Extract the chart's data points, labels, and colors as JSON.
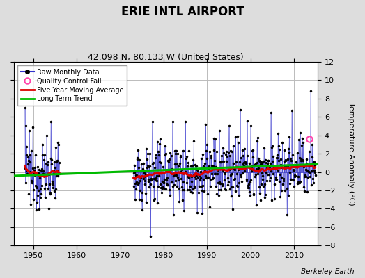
{
  "title": "ERIE INTL AIRPORT",
  "subtitle": "42.098 N, 80.133 W (United States)",
  "ylabel": "Temperature Anomaly (°C)",
  "attribution": "Berkeley Earth",
  "xlim": [
    1945.5,
    2015.5
  ],
  "ylim": [
    -8,
    12
  ],
  "yticks": [
    -8,
    -6,
    -4,
    -2,
    0,
    2,
    4,
    6,
    8,
    10,
    12
  ],
  "xticks": [
    1950,
    1960,
    1970,
    1980,
    1990,
    2000,
    2010
  ],
  "bg_color": "#dddddd",
  "plot_bg_color": "#ffffff",
  "grid_color": "#bbbbbb",
  "raw_line_color": "#3333cc",
  "raw_dot_color": "#000000",
  "ma_color": "#dd0000",
  "trend_color": "#00bb00",
  "qc_fail_color": "#ff44aa",
  "legend_labels": [
    "Raw Monthly Data",
    "Quality Control Fail",
    "Five Year Moving Average",
    "Long-Term Trend"
  ],
  "period1_start": 1948,
  "period1_end": 1955,
  "period2_start": 1973,
  "period2_end": 2014,
  "qc_fail_x": 2013.6,
  "qc_fail_y": 3.6,
  "trend_x": [
    1945,
    2016
  ],
  "trend_y": [
    -0.42,
    0.87
  ],
  "title_fontsize": 12,
  "subtitle_fontsize": 9,
  "tick_fontsize": 8,
  "ylabel_fontsize": 8
}
